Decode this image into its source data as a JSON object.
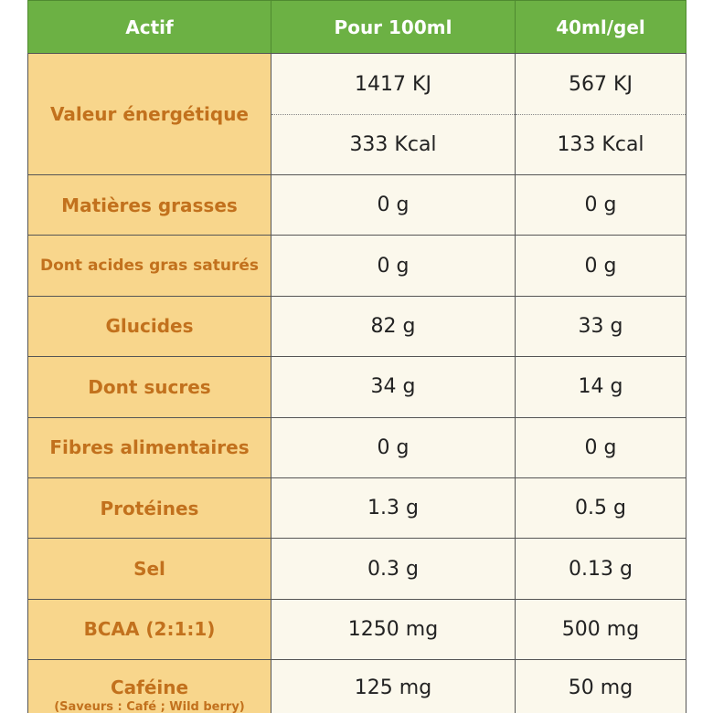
{
  "table": {
    "header": [
      "Actif",
      "Pour 100ml",
      "40ml/gel"
    ],
    "energy": {
      "label": "Valeur énergétique",
      "per_100ml": [
        "1417 KJ",
        "333 Kcal"
      ],
      "per_gel": [
        "567 KJ",
        "133 Kcal"
      ]
    },
    "rows": [
      [
        "Matières grasses",
        "0 g",
        "0 g"
      ],
      [
        "Dont acides gras saturés",
        "0 g",
        "0 g"
      ],
      [
        "Glucides",
        "82 g",
        "33 g"
      ],
      [
        "Dont sucres",
        "34 g",
        "14 g"
      ],
      [
        "Fibres alimentaires",
        "0 g",
        "0 g"
      ],
      [
        "Protéines",
        "1.3 g",
        "0.5 g"
      ],
      [
        "Sel",
        "0.3 g",
        "0.13 g"
      ],
      [
        "BCAA (2:1:1)",
        "1250 mg",
        "500 mg"
      ],
      [
        "Caféine",
        "125 mg",
        "50 mg"
      ]
    ],
    "caffeine_note": "(Saveurs : Café ; Wild berry)"
  }
}
